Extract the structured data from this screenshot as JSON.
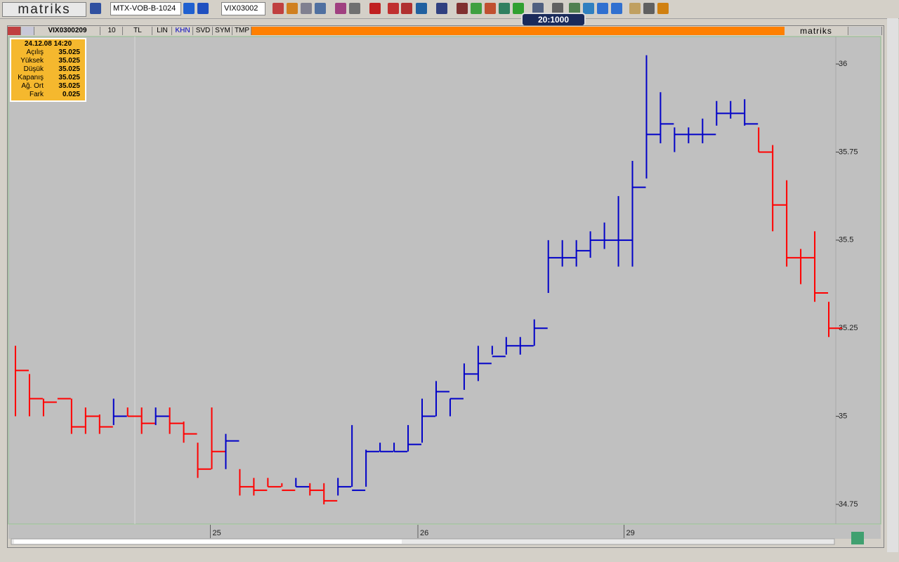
{
  "toolbar": {
    "logo": "matriks",
    "symbol_list": "MTX-VOB-B-1024",
    "symbol": "VIX03002",
    "badge": "20:1000"
  },
  "chart_header": {
    "symbol": "VIX0300209",
    "period": "10",
    "currency": "TL",
    "buttons": [
      "LIN",
      "KHN",
      "SVD",
      "SYM",
      "TMP"
    ],
    "brand": "matriks"
  },
  "info_box": {
    "datetime": "24.12.08 14:20",
    "rows": [
      [
        "Açılış",
        "35.025"
      ],
      [
        "Yüksek",
        "35.025"
      ],
      [
        "Düşük",
        "35.025"
      ],
      [
        "Kapanış",
        "35.025"
      ],
      [
        "Ağ. Ort",
        "35.025"
      ],
      [
        "Fark",
        "0.025"
      ]
    ]
  },
  "chart_data": {
    "type": "ohlc",
    "ylim": [
      34.696,
      36.078
    ],
    "yticks": [
      34.75,
      35,
      35.25,
      35.5,
      35.75,
      36
    ],
    "xlim": [
      -0.5,
      58.5
    ],
    "xticks": [
      {
        "value": 13.9,
        "label": "25"
      },
      {
        "value": 28.7,
        "label": "26"
      },
      {
        "value": 43.4,
        "label": "29"
      }
    ],
    "high": [
      35.2,
      35.12,
      35.05,
      35.05,
      35.05,
      35.025,
      35.005,
      35.05,
      35.025,
      35.025,
      35.025,
      35.025,
      34.985,
      34.925,
      35.025,
      34.95,
      34.85,
      34.825,
      34.825,
      34.81,
      34.825,
      34.81,
      34.81,
      34.825,
      34.975,
      34.905,
      34.925,
      34.925,
      34.975,
      35.05,
      35.1,
      35.05,
      35.15,
      35.2,
      35.2,
      35.225,
      35.225,
      35.275,
      35.5,
      35.5,
      35.5,
      35.525,
      35.55,
      35.625,
      35.725,
      36.025,
      35.92,
      35.82,
      35.82,
      35.845,
      35.895,
      35.895,
      35.9,
      35.82,
      35.77,
      35.67,
      35.475,
      35.525,
      35.325
    ],
    "low": [
      35.0,
      35.0,
      35.0,
      35.05,
      34.95,
      34.95,
      34.95,
      34.975,
      35.0,
      34.95,
      34.975,
      34.95,
      34.925,
      34.825,
      34.85,
      34.85,
      34.775,
      34.775,
      34.8,
      34.8,
      34.8,
      34.775,
      34.75,
      34.775,
      34.8,
      34.8,
      34.9,
      34.9,
      34.9,
      34.925,
      35.0,
      35.0,
      35.075,
      35.1,
      35.175,
      35.175,
      35.175,
      35.2,
      35.35,
      35.425,
      35.425,
      35.45,
      35.475,
      35.425,
      35.425,
      35.675,
      35.775,
      35.75,
      35.775,
      35.775,
      35.825,
      35.845,
      35.825,
      35.75,
      35.525,
      35.425,
      35.375,
      35.325,
      35.225
    ],
    "close": [
      35.13,
      35.05,
      35.04,
      35.05,
      34.97,
      35.0,
      34.97,
      35.0,
      35.0,
      34.98,
      35.0,
      34.98,
      34.95,
      34.85,
      34.9,
      34.93,
      34.8,
      34.79,
      34.8,
      34.79,
      34.8,
      34.79,
      34.76,
      34.8,
      34.79,
      34.9,
      34.9,
      34.9,
      34.92,
      35.0,
      35.07,
      35.05,
      35.12,
      35.15,
      35.17,
      35.2,
      35.2,
      35.25,
      35.45,
      35.45,
      35.47,
      35.5,
      35.5,
      35.5,
      35.65,
      35.8,
      35.83,
      35.8,
      35.8,
      35.8,
      35.86,
      35.86,
      35.83,
      35.75,
      35.6,
      35.45,
      35.45,
      35.35,
      35.25
    ],
    "colors": [
      "#ff0000",
      "#ff0000",
      "#ff0000",
      "#ff0000",
      "#ff0000",
      "#ff0000",
      "#ff0000",
      "#0000c8",
      "#ff0000",
      "#ff0000",
      "#0000c8",
      "#ff0000",
      "#ff0000",
      "#ff0000",
      "#ff0000",
      "#0000c8",
      "#ff0000",
      "#ff0000",
      "#ff0000",
      "#ff0000",
      "#0000c8",
      "#ff0000",
      "#ff0000",
      "#0000c8",
      "#0000c8",
      "#0000c8",
      "#0000c8",
      "#0000c8",
      "#0000c8",
      "#0000c8",
      "#0000c8",
      "#0000c8",
      "#0000c8",
      "#0000c8",
      "#0000c8",
      "#0000c8",
      "#0000c8",
      "#0000c8",
      "#0000c8",
      "#0000c8",
      "#0000c8",
      "#0000c8",
      "#0000c8",
      "#0000c8",
      "#0000c8",
      "#0000c8",
      "#0000c8",
      "#0000c8",
      "#0000c8",
      "#0000c8",
      "#0000c8",
      "#0000c8",
      "#0000c8",
      "#ff0000",
      "#ff0000",
      "#ff0000",
      "#ff0000",
      "#ff0000",
      "#ff0000"
    ]
  }
}
